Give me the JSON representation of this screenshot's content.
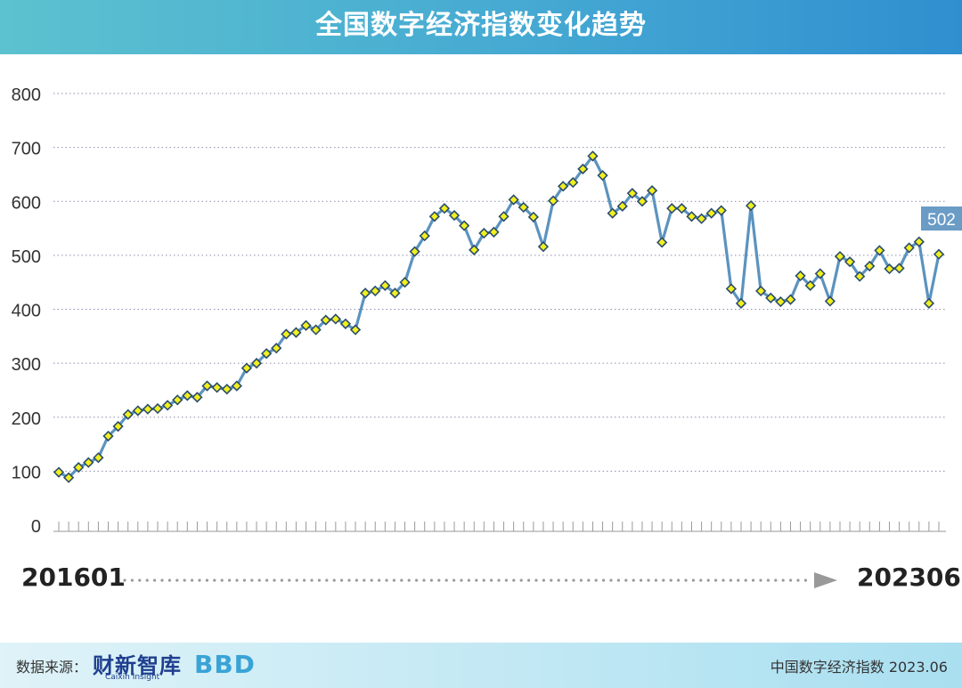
{
  "title": "全国数字经济指数变化趋势",
  "footer": {
    "source_label": "数据来源：",
    "logo_text": "财新智库",
    "logo_subtext": "Caixin Insight",
    "logo_bbd": "BBD",
    "note": "中国数字经济指数 2023.06"
  },
  "colors": {
    "line": "#5b93bf",
    "marker_fill": "#f2ef1e",
    "marker_stroke": "#2b4d6c",
    "grid": "#8a8fb0",
    "header": "#45a9d2",
    "callout": "#6a9cc6"
  },
  "chart_data": {
    "type": "line",
    "title": "全国数字经济指数变化趋势",
    "xlabel": "",
    "ylabel": "",
    "ylim": [
      0,
      800
    ],
    "yticks": [
      0,
      100,
      200,
      300,
      400,
      500,
      600,
      700,
      800
    ],
    "grid": true,
    "x_start_label": "201601",
    "x_end_label": "202306",
    "last_value_label": "502",
    "series": [
      {
        "values": [
          98,
          88,
          107,
          116,
          125,
          165,
          183,
          205,
          212,
          215,
          216,
          222,
          232,
          240,
          237,
          258,
          255,
          252,
          258,
          291,
          300,
          318,
          328,
          354,
          357,
          370,
          362,
          380,
          382,
          373,
          362,
          430,
          434,
          444,
          430,
          450,
          507,
          536,
          572,
          587,
          574,
          555,
          510,
          541,
          543,
          572,
          603,
          589,
          571,
          516,
          601,
          628,
          635,
          660,
          684,
          648,
          578,
          591,
          615,
          600,
          620,
          524,
          587,
          587,
          572,
          568,
          578,
          583,
          438,
          411,
          592,
          434,
          421,
          414,
          418,
          462,
          444,
          466,
          415,
          498,
          488,
          461,
          480,
          509,
          475,
          476,
          514,
          525,
          411,
          502
        ]
      }
    ]
  }
}
